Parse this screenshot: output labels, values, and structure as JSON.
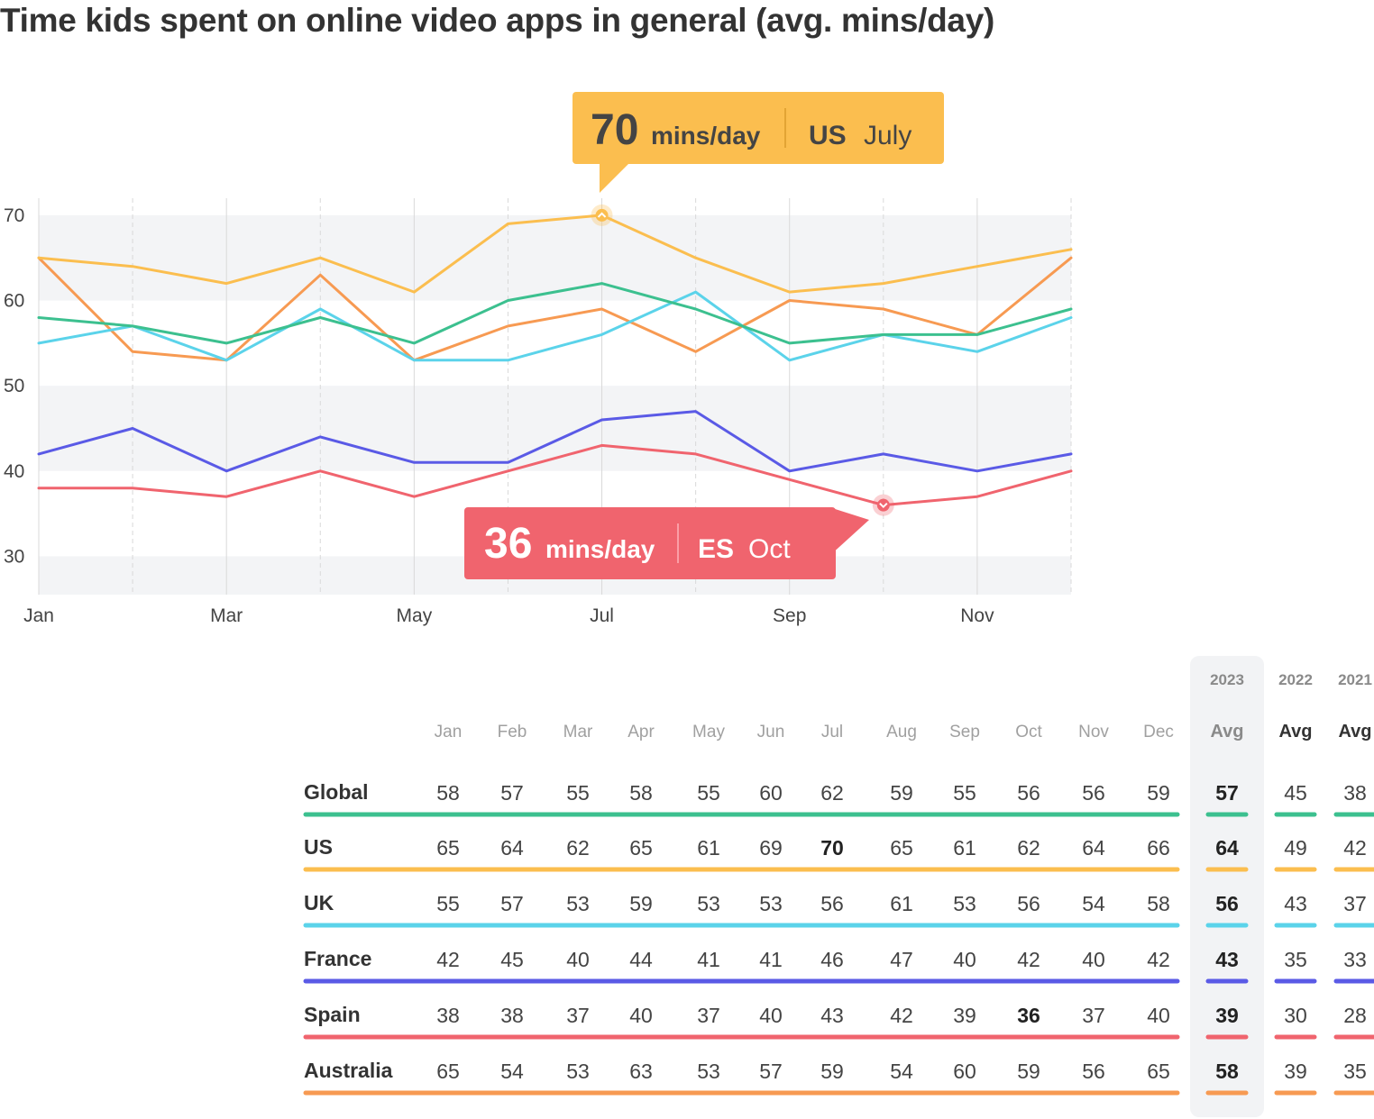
{
  "title": "Time kids spent on online video apps in general (avg. mins/day)",
  "colors": {
    "Global": "#3cc08f",
    "US": "#fbbe4f",
    "UK": "#5bd3ea",
    "France": "#5a5ae6",
    "Spain": "#f0646e",
    "Australia": "#f79a52",
    "band": "#f3f4f6",
    "grid": "#d9d9d9"
  },
  "chart_data": {
    "type": "line",
    "title": "Time kids spent on online video apps in general (avg. mins/day)",
    "x": [
      "Jan",
      "Feb",
      "Mar",
      "Apr",
      "May",
      "Jun",
      "Jul",
      "Aug",
      "Sep",
      "Oct",
      "Nov",
      "Dec"
    ],
    "x_tick_labels": [
      "Jan",
      "Mar",
      "May",
      "Jul",
      "Sep",
      "Nov"
    ],
    "y_ticks": [
      30,
      40,
      50,
      60,
      70
    ],
    "ylim": [
      25.5,
      72
    ],
    "grid": true,
    "series": [
      {
        "name": "Global",
        "values": [
          58,
          57,
          55,
          58,
          55,
          60,
          62,
          59,
          55,
          56,
          56,
          59
        ]
      },
      {
        "name": "US",
        "values": [
          65,
          64,
          62,
          65,
          61,
          69,
          70,
          65,
          61,
          62,
          64,
          66
        ]
      },
      {
        "name": "UK",
        "values": [
          55,
          57,
          53,
          59,
          53,
          53,
          56,
          61,
          53,
          56,
          54,
          58
        ]
      },
      {
        "name": "France",
        "values": [
          42,
          45,
          40,
          44,
          41,
          41,
          46,
          47,
          40,
          42,
          40,
          42
        ]
      },
      {
        "name": "Spain",
        "values": [
          38,
          38,
          37,
          40,
          37,
          40,
          43,
          42,
          39,
          36,
          37,
          40
        ]
      },
      {
        "name": "Australia",
        "values": [
          65,
          54,
          53,
          63,
          53,
          57,
          59,
          54,
          60,
          59,
          56,
          65
        ]
      }
    ],
    "annotations": [
      {
        "series": "US",
        "month_index": 6,
        "value": "70",
        "unit": "mins/day",
        "country": "US",
        "period": "July"
      },
      {
        "series": "Spain",
        "month_index": 9,
        "value": "36",
        "unit": "mins/day",
        "country": "ES",
        "period": "Oct"
      }
    ]
  },
  "table": {
    "year_headers": [
      "2023",
      "2022",
      "2021"
    ],
    "avg_label": "Avg",
    "months": [
      "Jan",
      "Feb",
      "Mar",
      "Apr",
      "May",
      "Jun",
      "Jul",
      "Aug",
      "Sep",
      "Oct",
      "Nov",
      "Dec"
    ],
    "bold_cells": [
      {
        "row": 1,
        "col": 6
      },
      {
        "row": 4,
        "col": 9
      }
    ],
    "rows": [
      {
        "name": "Global",
        "values": [
          "58",
          "57",
          "55",
          "58",
          "55",
          "60",
          "62",
          "59",
          "55",
          "56",
          "56",
          "59"
        ],
        "avg2023": "57",
        "avg2022": "45",
        "avg2021": "38"
      },
      {
        "name": "US",
        "values": [
          "65",
          "64",
          "62",
          "65",
          "61",
          "69",
          "70",
          "65",
          "61",
          "62",
          "64",
          "66"
        ],
        "avg2023": "64",
        "avg2022": "49",
        "avg2021": "42"
      },
      {
        "name": "UK",
        "values": [
          "55",
          "57",
          "53",
          "59",
          "53",
          "53",
          "56",
          "61",
          "53",
          "56",
          "54",
          "58"
        ],
        "avg2023": "56",
        "avg2022": "43",
        "avg2021": "37"
      },
      {
        "name": "France",
        "values": [
          "42",
          "45",
          "40",
          "44",
          "41",
          "41",
          "46",
          "47",
          "40",
          "42",
          "40",
          "42"
        ],
        "avg2023": "43",
        "avg2022": "35",
        "avg2021": "33"
      },
      {
        "name": "Spain",
        "values": [
          "38",
          "38",
          "37",
          "40",
          "37",
          "40",
          "43",
          "42",
          "39",
          "36",
          "37",
          "40"
        ],
        "avg2023": "39",
        "avg2022": "30",
        "avg2021": "28"
      },
      {
        "name": "Australia",
        "values": [
          "65",
          "54",
          "53",
          "63",
          "53",
          "57",
          "59",
          "54",
          "60",
          "59",
          "56",
          "65"
        ],
        "avg2023": "58",
        "avg2022": "39",
        "avg2021": "35"
      }
    ]
  }
}
